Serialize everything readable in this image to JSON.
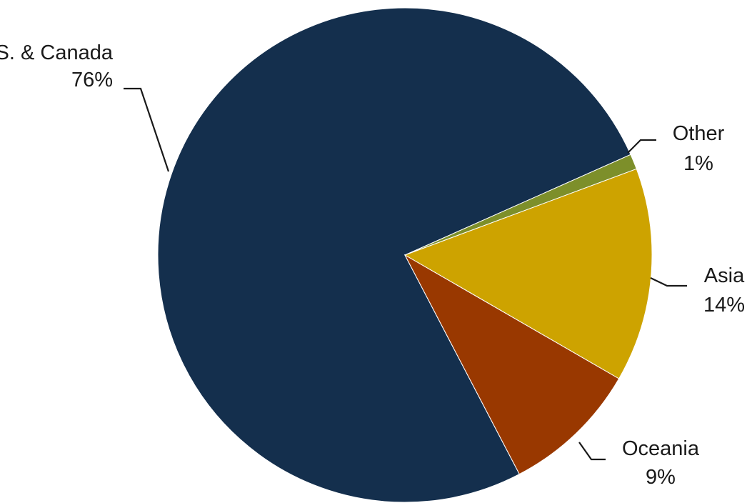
{
  "chart_data": {
    "type": "pie",
    "slices": [
      {
        "label": "U.S. & Canada",
        "value": 76,
        "value_label": "76%",
        "color": "#142f4d"
      },
      {
        "label": "Other",
        "value": 1,
        "value_label": "1%",
        "color": "#7d8f2a"
      },
      {
        "label": "Asia",
        "value": 14,
        "value_label": "14%",
        "color": "#cda300"
      },
      {
        "label": "Oceania",
        "value": 9,
        "value_label": "9%",
        "color": "#993800"
      }
    ],
    "unit": "%",
    "legend": "none",
    "labels": "outside with leader lines"
  }
}
